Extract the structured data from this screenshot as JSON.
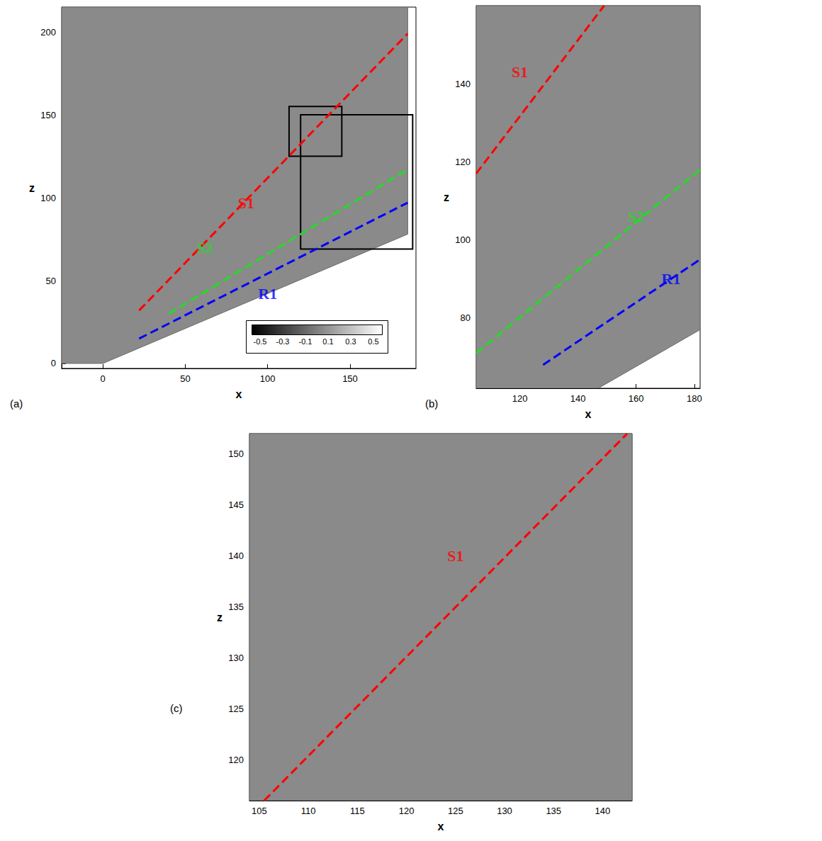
{
  "chart_data": [
    {
      "type": "line",
      "panel_label": "(a)",
      "xlabel": "x",
      "ylabel": "z",
      "xlim": [
        -25,
        190
      ],
      "ylim": [
        -3,
        215
      ],
      "xticks": [
        0,
        50,
        100,
        150
      ],
      "yticks": [
        0,
        50,
        100,
        150,
        200
      ],
      "domain": [
        [
          -25,
          0
        ],
        [
          0,
          0
        ],
        [
          185,
          78
        ],
        [
          185,
          215
        ],
        [
          -25,
          215
        ]
      ],
      "boxes": [
        {
          "x": [
            113,
            145
          ],
          "z": [
            125,
            155
          ]
        },
        {
          "x": [
            120,
            188
          ],
          "z": [
            69,
            150
          ]
        }
      ],
      "series": [
        {
          "name": "S1",
          "color": "#ff0000",
          "line_style": "dashed",
          "x": [
            22,
            185
          ],
          "values": [
            32,
            199
          ],
          "label_at": [
            87,
            97
          ]
        },
        {
          "name": "S2",
          "color": "#22dd22",
          "line_style": "dashed",
          "x": [
            40,
            185
          ],
          "values": [
            30,
            117
          ],
          "label_at": [
            62,
            70
          ]
        },
        {
          "name": "R1",
          "color": "#0000ff",
          "line_style": "dashed",
          "x": [
            22,
            185
          ],
          "values": [
            15,
            97
          ],
          "label_at": [
            100,
            42
          ]
        }
      ],
      "colorbar": {
        "range": [
          -0.5,
          0.5
        ],
        "ticks": [
          -0.5,
          -0.3,
          -0.1,
          0.1,
          0.3,
          0.5
        ]
      }
    },
    {
      "type": "line",
      "panel_label": "(b)",
      "xlabel": "x",
      "ylabel": "z",
      "xlim": [
        105,
        182
      ],
      "ylim": [
        62,
        160
      ],
      "xticks": [
        120,
        140,
        160,
        180
      ],
      "yticks": [
        80,
        100,
        120,
        140
      ],
      "domain": [
        [
          105,
          62
        ],
        [
          147,
          62
        ],
        [
          182,
          77
        ],
        [
          182,
          160
        ],
        [
          105,
          160
        ]
      ],
      "boxes": [],
      "series": [
        {
          "name": "S1",
          "color": "#ff0000",
          "line_style": "dashed",
          "x": [
            105,
            149
          ],
          "values": [
            117,
            160
          ],
          "label_at": [
            120,
            143
          ]
        },
        {
          "name": "S2",
          "color": "#22dd22",
          "line_style": "dashed",
          "x": [
            105,
            182
          ],
          "values": [
            71,
            118
          ],
          "label_at": [
            160,
            106
          ]
        },
        {
          "name": "R1",
          "color": "#0000ff",
          "line_style": "dashed",
          "x": [
            128,
            182
          ],
          "values": [
            68,
            95
          ],
          "label_at": [
            172,
            90
          ]
        }
      ]
    },
    {
      "type": "line",
      "panel_label": "(c)",
      "xlabel": "x",
      "ylabel": "z",
      "xlim": [
        104,
        143
      ],
      "ylim": [
        116,
        152
      ],
      "xticks": [
        105,
        110,
        115,
        120,
        125,
        130,
        135,
        140
      ],
      "yticks": [
        120,
        125,
        130,
        135,
        140,
        145,
        150
      ],
      "domain": [
        [
          104,
          116
        ],
        [
          143,
          116
        ],
        [
          143,
          152
        ],
        [
          104,
          152
        ]
      ],
      "boxes": [],
      "series": [
        {
          "name": "S1",
          "color": "#ff0000",
          "line_style": "dashed",
          "x": [
            105.5,
            142.5
          ],
          "values": [
            116,
            152
          ],
          "label_at": [
            125,
            140
          ]
        }
      ]
    }
  ]
}
